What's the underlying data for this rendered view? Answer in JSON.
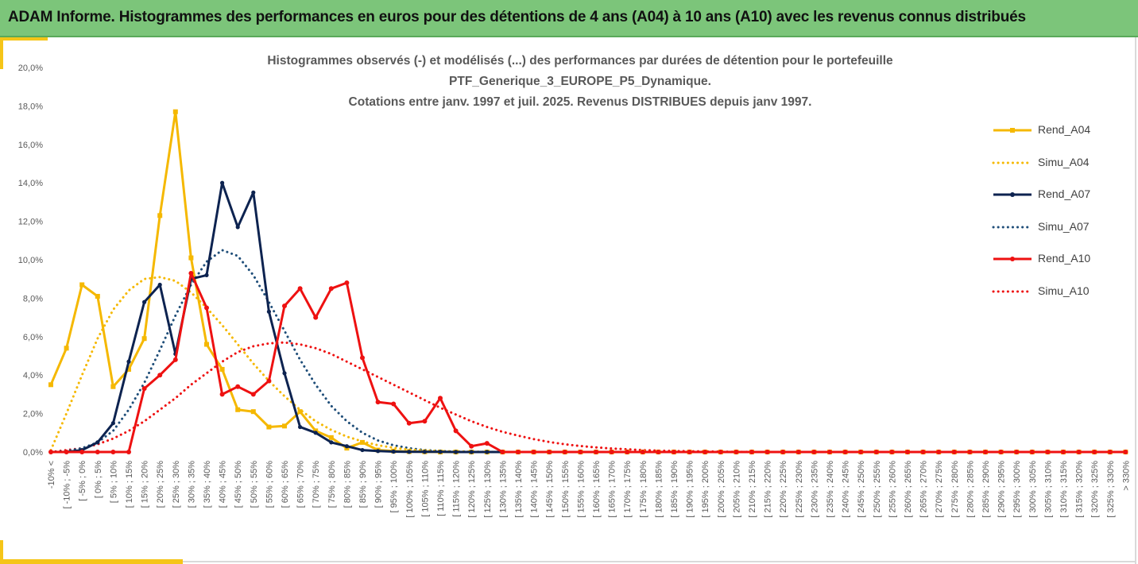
{
  "header": {
    "title": "ADAM Informe. Histogrammes des performances en euros pour des détentions de 4 ans (A04) à 10 ans (A10) avec les revenus connus distribués"
  },
  "chart_data": {
    "type": "line",
    "title_lines": [
      "Histogrammes observés (-) et modélisés (...) des performances par durées de détention pour le portefeuille",
      "PTF_Generique_3_EUROPE_P5_Dynamique.",
      "Cotations entre janv. 1997 et juil. 2025. Revenus DISTRIBUES depuis janv 1997."
    ],
    "xlabel": "",
    "ylabel": "",
    "ylim": [
      0,
      20
    ],
    "y_ticks": [
      "0,0%",
      "2,0%",
      "4,0%",
      "6,0%",
      "8,0%",
      "10,0%",
      "12,0%",
      "14,0%",
      "16,0%",
      "18,0%",
      "20,0%"
    ],
    "grid": false,
    "legend_position": "right",
    "categories": [
      "-10% <",
      "[ -10% ; -5%",
      "[ -5% ; 0%",
      "[ 0% ; 5%",
      "[ 5% ; 10%",
      "[ 10% ; 15%",
      "[ 15% ; 20%",
      "[ 20% ; 25%",
      "[ 25% ; 30%",
      "[ 30% ; 35%",
      "[ 35% ; 40%",
      "[ 40% ; 45%",
      "[ 45% ; 50%",
      "[ 50% ; 55%",
      "[ 55% ; 60%",
      "[ 60% ; 65%",
      "[ 65% ; 70%",
      "[ 70% ; 75%",
      "[ 75% ; 80%",
      "[ 80% ; 85%",
      "[ 85% ; 90%",
      "[ 90% ; 95%",
      "[ 95% ; 100%",
      "[ 100% ; 105%",
      "[ 105% ; 110%",
      "[ 110% ; 115%",
      "[ 115% ; 120%",
      "[ 120% ; 125%",
      "[ 125% ; 130%",
      "[ 130% ; 135%",
      "[ 135% ; 140%",
      "[ 140% ; 145%",
      "[ 145% ; 150%",
      "[ 150% ; 155%",
      "[ 155% ; 160%",
      "[ 160% ; 165%",
      "[ 165% ; 170%",
      "[ 170% ; 175%",
      "[ 175% ; 180%",
      "[ 180% ; 185%",
      "[ 185% ; 190%",
      "[ 190% ; 195%",
      "[ 195% ; 200%",
      "[ 200% ; 205%",
      "[ 205% ; 210%",
      "[ 210% ; 215%",
      "[ 215% ; 220%",
      "[ 220% ; 225%",
      "[ 225% ; 230%",
      "[ 230% ; 235%",
      "[ 235% ; 240%",
      "[ 240% ; 245%",
      "[ 245% ; 250%",
      "[ 250% ; 255%",
      "[ 255% ; 260%",
      "[ 260% ; 265%",
      "[ 265% ; 270%",
      "[ 270% ; 275%",
      "[ 275% ; 280%",
      "[ 280% ; 285%",
      "[ 285% ; 290%",
      "[ 290% ; 295%",
      "[ 295% ; 300%",
      "[ 300% ; 305%",
      "[ 305% ; 310%",
      "[ 310% ; 315%",
      "[ 315% ; 320%",
      "[ 320% ; 325%",
      "[ 325% ; 330%",
      "> 330%"
    ],
    "series": [
      {
        "name": "Rend_A04",
        "color": "#f5b800",
        "style": "solid",
        "values": [
          3.5,
          5.4,
          8.7,
          8.1,
          3.4,
          4.3,
          5.9,
          12.3,
          17.7,
          10.1,
          5.6,
          4.3,
          2.2,
          2.1,
          1.3,
          1.35,
          2.1,
          1.1,
          0.75,
          0.2,
          0.5,
          0.1,
          0.05,
          0.02,
          0.01,
          0,
          0,
          0,
          0,
          0,
          0,
          0,
          0,
          0,
          0,
          0,
          0,
          0,
          0,
          0,
          0,
          0,
          0,
          0,
          0,
          0,
          0,
          0,
          0,
          0,
          0,
          0,
          0,
          0,
          0,
          0,
          0,
          0,
          0,
          0,
          0,
          0,
          0,
          0,
          0,
          0,
          0,
          0,
          0,
          0
        ]
      },
      {
        "name": "Simu_A04",
        "color": "#f5b800",
        "style": "dotted",
        "values": [
          0.1,
          2.0,
          4.0,
          5.9,
          7.4,
          8.4,
          9.0,
          9.1,
          8.9,
          8.3,
          7.5,
          6.6,
          5.6,
          4.6,
          3.7,
          2.9,
          2.2,
          1.6,
          1.15,
          0.8,
          0.55,
          0.35,
          0.22,
          0.13,
          0.08,
          0.05,
          0.03,
          0.02,
          0.01,
          0,
          0,
          0,
          0,
          0,
          0,
          0,
          0,
          0,
          0,
          0,
          0,
          0,
          0,
          0,
          0,
          0,
          0,
          0,
          0,
          0,
          0,
          0,
          0,
          0,
          0,
          0,
          0,
          0,
          0,
          0,
          0,
          0,
          0,
          0,
          0,
          0,
          0,
          0,
          0,
          0
        ]
      },
      {
        "name": "Rend_A07",
        "color": "#0d2350",
        "style": "solid",
        "values": [
          0,
          0,
          0.1,
          0.5,
          1.5,
          4.7,
          7.8,
          8.7,
          5.1,
          9.0,
          9.2,
          14.0,
          11.7,
          13.5,
          7.3,
          4.1,
          1.3,
          1.0,
          0.5,
          0.3,
          0.1,
          0.05,
          0.02,
          0.01,
          0.01,
          0.01,
          0,
          0,
          0,
          0,
          0,
          0,
          0,
          0,
          0,
          0,
          0,
          0,
          0,
          0,
          0,
          0,
          0,
          0,
          0,
          0,
          0,
          0,
          0,
          0,
          0,
          0,
          0,
          0,
          0,
          0,
          0,
          0,
          0,
          0,
          0,
          0,
          0,
          0,
          0,
          0,
          0,
          0,
          0,
          0
        ]
      },
      {
        "name": "Simu_A07",
        "color": "#1f4e79",
        "style": "dotted",
        "values": [
          0,
          0.05,
          0.2,
          0.5,
          1.1,
          2.2,
          3.6,
          5.3,
          7.1,
          8.7,
          9.9,
          10.5,
          10.2,
          9.2,
          7.8,
          6.3,
          4.8,
          3.5,
          2.4,
          1.6,
          1.0,
          0.6,
          0.35,
          0.2,
          0.1,
          0.05,
          0.02,
          0.01,
          0,
          0,
          0,
          0,
          0,
          0,
          0,
          0,
          0,
          0,
          0,
          0,
          0,
          0,
          0,
          0,
          0,
          0,
          0,
          0,
          0,
          0,
          0,
          0,
          0,
          0,
          0,
          0,
          0,
          0,
          0,
          0,
          0,
          0,
          0,
          0,
          0,
          0,
          0,
          0,
          0,
          0
        ]
      },
      {
        "name": "Rend_A10",
        "color": "#ee1111",
        "style": "solid",
        "values": [
          0,
          0,
          0,
          0,
          0,
          0,
          3.3,
          4.0,
          4.8,
          9.3,
          7.5,
          3.0,
          3.4,
          3.0,
          3.7,
          7.6,
          8.5,
          7.0,
          8.5,
          8.8,
          4.9,
          2.6,
          2.5,
          1.5,
          1.6,
          2.8,
          1.1,
          0.3,
          0.45,
          0,
          0,
          0,
          0,
          0,
          0,
          0,
          0,
          0,
          0,
          0,
          0,
          0,
          0,
          0,
          0,
          0,
          0,
          0,
          0,
          0,
          0,
          0,
          0,
          0,
          0,
          0,
          0,
          0,
          0,
          0,
          0,
          0,
          0,
          0,
          0,
          0,
          0,
          0,
          0,
          0
        ]
      },
      {
        "name": "Simu_A10",
        "color": "#ee1111",
        "style": "dotted",
        "values": [
          0,
          0.1,
          0.2,
          0.4,
          0.7,
          1.1,
          1.6,
          2.2,
          2.8,
          3.5,
          4.1,
          4.7,
          5.2,
          5.5,
          5.65,
          5.7,
          5.6,
          5.4,
          5.1,
          4.7,
          4.3,
          3.9,
          3.5,
          3.1,
          2.7,
          2.3,
          1.95,
          1.6,
          1.3,
          1.05,
          0.85,
          0.67,
          0.52,
          0.4,
          0.31,
          0.24,
          0.18,
          0.14,
          0.1,
          0.07,
          0.05,
          0.04,
          0.03,
          0.02,
          0.01,
          0,
          0,
          0,
          0,
          0,
          0,
          0,
          0,
          0,
          0,
          0,
          0,
          0,
          0,
          0,
          0,
          0,
          0,
          0,
          0,
          0,
          0,
          0,
          0,
          0
        ]
      }
    ]
  }
}
